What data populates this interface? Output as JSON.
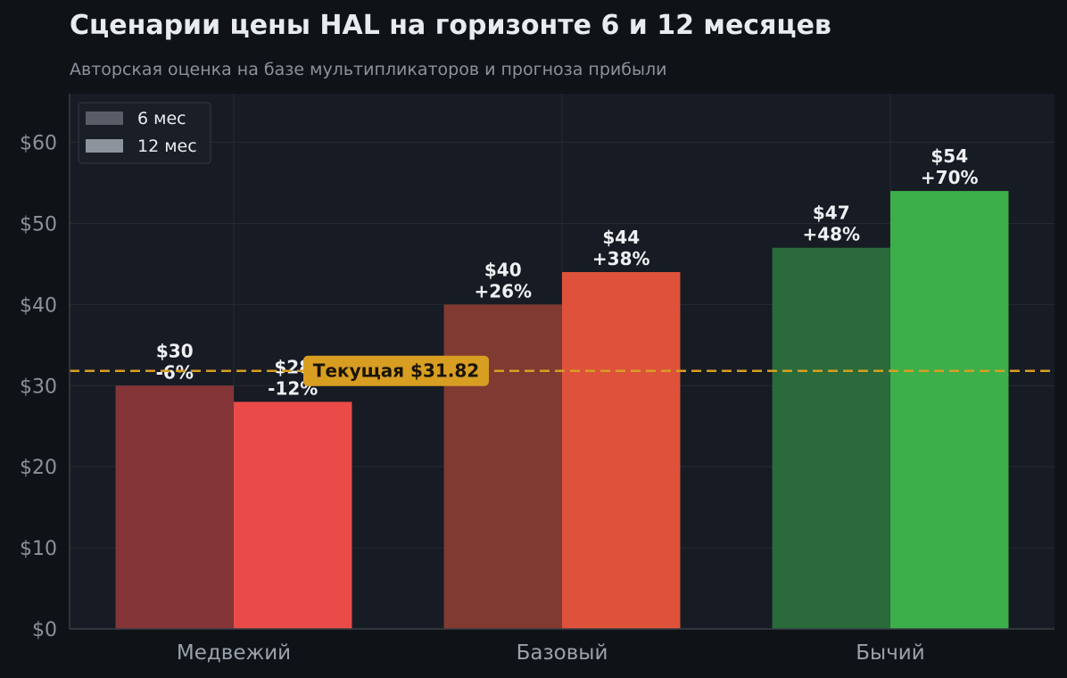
{
  "chart_data": {
    "type": "bar",
    "title": "Сценарии цены HAL на горизонте 6 и 12 месяцев",
    "subtitle": "Авторская оценка на базе мультипликаторов и прогноза прибыли",
    "categories": [
      "Медвежий",
      "Базовый",
      "Бычий"
    ],
    "series": [
      {
        "name": "6 мес",
        "values": [
          30,
          40,
          47
        ],
        "labels": [
          "$30\n-6%",
          "$40\n+26%",
          "$47\n+48%"
        ],
        "colors": [
          "#843537",
          "#803a31",
          "#2a6a3b"
        ]
      },
      {
        "name": "12 мес",
        "values": [
          28,
          44,
          54
        ],
        "labels": [
          "$28\n-12%",
          "$44\n+38%",
          "$54\n+70%"
        ],
        "colors": [
          "#ea4b48",
          "#de523b",
          "#3caf4b"
        ]
      }
    ],
    "ylim": [
      0,
      66
    ],
    "yticks": [
      0,
      10,
      20,
      30,
      40,
      50,
      60
    ],
    "ytick_labels": [
      "$0",
      "$10",
      "$20",
      "$30",
      "$40",
      "$50",
      "$60"
    ],
    "reference_line": {
      "value": 31.82,
      "label": "Текущая $31.82",
      "color": "#d89e22"
    },
    "legend": {
      "position": "top-left",
      "entries": [
        {
          "label": "6 мес",
          "color": "#585d68"
        },
        {
          "label": "12 мес",
          "color": "#8c939c"
        }
      ]
    },
    "grid": true
  },
  "colors": {
    "background": "#0f1318",
    "plot_background": "#171b23",
    "grid": "#262b33"
  }
}
